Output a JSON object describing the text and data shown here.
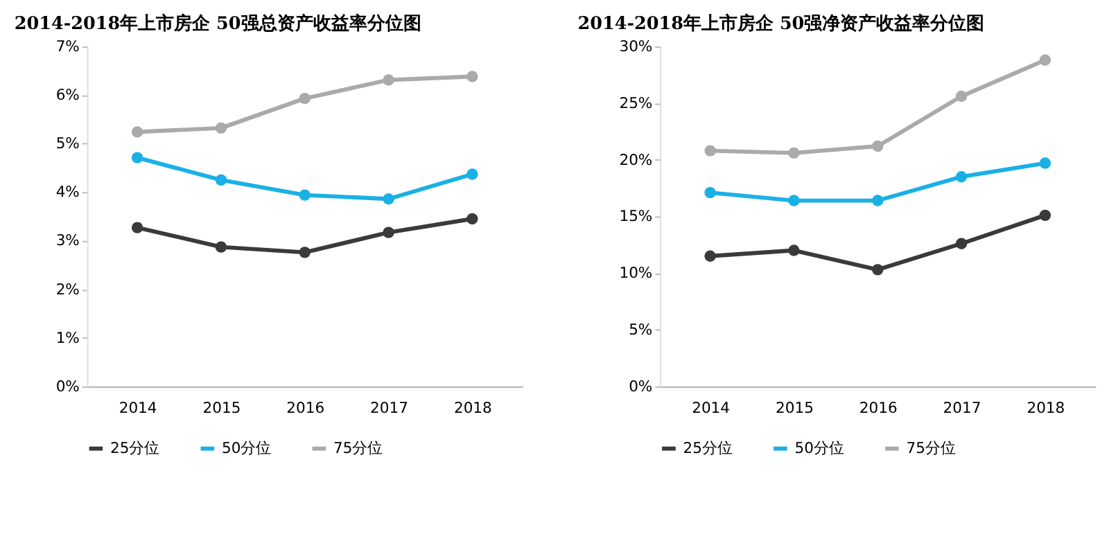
{
  "chart_data": [
    {
      "type": "line",
      "title": "2014-2018年上市房企 50强总资产收益率分位图",
      "categories": [
        "2014",
        "2015",
        "2016",
        "2017",
        "2018"
      ],
      "series": [
        {
          "name": "25分位",
          "color": "#3a3a3a",
          "values": [
            3.27,
            2.87,
            2.76,
            3.17,
            3.45
          ]
        },
        {
          "name": "50分位",
          "color": "#1ab0e6",
          "values": [
            4.71,
            4.25,
            3.94,
            3.86,
            4.37
          ]
        },
        {
          "name": "75分位",
          "color": "#aaaaaa",
          "values": [
            5.24,
            5.32,
            5.93,
            6.31,
            6.38
          ]
        }
      ],
      "ylim": [
        0,
        7
      ],
      "yticks": [
        {
          "value": 0,
          "label": "0%"
        },
        {
          "value": 1,
          "label": "1%"
        },
        {
          "value": 2,
          "label": "2%"
        },
        {
          "value": 3,
          "label": "3%"
        },
        {
          "value": 4,
          "label": "4%"
        },
        {
          "value": 5,
          "label": "5%"
        },
        {
          "value": 6,
          "label": "6%"
        },
        {
          "value": 7,
          "label": "7%"
        }
      ],
      "grid": false,
      "legend": "bottom",
      "marker": "circle",
      "line_style": "solid"
    },
    {
      "type": "line",
      "title": "2014-2018年上市房企 50强净资产收益率分位图",
      "categories": [
        "2014",
        "2015",
        "2016",
        "2017",
        "2018"
      ],
      "series": [
        {
          "name": "25分位",
          "color": "#3a3a3a",
          "values": [
            11.5,
            12.0,
            10.3,
            12.6,
            15.1
          ]
        },
        {
          "name": "50分位",
          "color": "#1ab0e6",
          "values": [
            17.1,
            16.4,
            16.4,
            18.5,
            19.7
          ]
        },
        {
          "name": "75分位",
          "color": "#aaaaaa",
          "values": [
            20.8,
            20.6,
            21.2,
            25.6,
            28.8
          ]
        }
      ],
      "ylim": [
        0,
        30
      ],
      "yticks": [
        {
          "value": 0,
          "label": "0%"
        },
        {
          "value": 5,
          "label": "5%"
        },
        {
          "value": 10,
          "label": "10%"
        },
        {
          "value": 15,
          "label": "15%"
        },
        {
          "value": 20,
          "label": "20%"
        },
        {
          "value": 25,
          "label": "25%"
        },
        {
          "value": 30,
          "label": "30%"
        }
      ],
      "grid": false,
      "legend": "bottom",
      "marker": "circle",
      "line_style": "solid"
    }
  ]
}
